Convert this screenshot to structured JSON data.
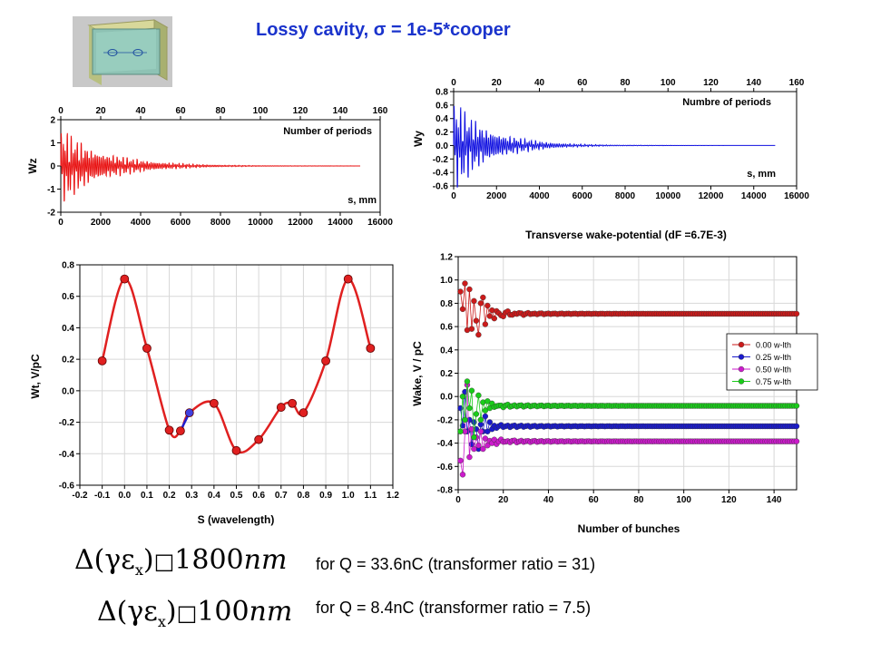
{
  "page_title": {
    "prefix": "Lossy cavity, ",
    "sigma": "σ",
    "eq": " = ",
    "rest": "1e-5*cooper"
  },
  "colors": {
    "title": "#1a33cc",
    "wz": "#e81010",
    "wy": "#1010e0",
    "wt": "#e02020",
    "s0": "#cc1a1a",
    "s1": "#1a1acc",
    "s2": "#cc1acc",
    "s3": "#1acc1a"
  },
  "chart_data": [
    {
      "id": "wz",
      "type": "line",
      "title": "",
      "xlabel": "s, mm",
      "ylabel": "Wz",
      "top_xlabel": "Number of periods",
      "xlim": [
        0,
        16000
      ],
      "ylim": [
        -2,
        2
      ],
      "xticks": [
        "0",
        "2000",
        "4000",
        "6000",
        "8000",
        "10000",
        "12000",
        "14000",
        "16000"
      ],
      "top_xlim": [
        0,
        160
      ],
      "top_ticks": [
        "0",
        "20",
        "40",
        "60",
        "80",
        "100",
        "120",
        "140",
        "160"
      ],
      "yticks": [
        "-2",
        "-1",
        "0",
        "1",
        "2"
      ],
      "series": [
        {
          "signal": "decaying-oscillation",
          "x_end": 15000,
          "initial_amplitude": 1.8,
          "decay_length": 2200,
          "period": 100
        }
      ]
    },
    {
      "id": "wy",
      "type": "line",
      "title": "",
      "xlabel": "s, mm",
      "ylabel": "Wy",
      "top_xlabel": "Numbre of periods",
      "xlim": [
        0,
        16000
      ],
      "ylim": [
        -0.6,
        0.8
      ],
      "xticks": [
        "0",
        "2000",
        "4000",
        "6000",
        "8000",
        "10000",
        "12000",
        "14000",
        "16000"
      ],
      "top_xlim": [
        0,
        160
      ],
      "top_ticks": [
        "0",
        "20",
        "40",
        "60",
        "80",
        "100",
        "120",
        "140",
        "160"
      ],
      "yticks": [
        "-0.6",
        "-0.4",
        "-0.2",
        "0.0",
        "0.2",
        "0.4",
        "0.6",
        "0.8"
      ],
      "caption": "Transverse wake-potential (dF =6.7E-3)",
      "series": [
        {
          "signal": "decaying-oscillation",
          "x_end": 15000,
          "initial_amplitude": 0.75,
          "decay_length": 1700,
          "period": 100
        }
      ]
    },
    {
      "id": "wt",
      "type": "line",
      "title": "",
      "xlabel": "S (wavelength)",
      "ylabel": "Wt, V/pC",
      "xlim": [
        -0.2,
        1.2
      ],
      "ylim": [
        -0.6,
        0.8
      ],
      "xticks": [
        "-0.2",
        "-0.1",
        "0.0",
        "0.1",
        "0.2",
        "0.3",
        "0.4",
        "0.5",
        "0.6",
        "0.7",
        "0.8",
        "0.9",
        "1.0",
        "1.1",
        "1.2"
      ],
      "yticks": [
        "-0.6",
        "-0.4",
        "-0.2",
        "0.0",
        "0.2",
        "0.4",
        "0.6",
        "0.8"
      ],
      "points": [
        {
          "x": -0.1,
          "y": 0.19
        },
        {
          "x": 0.0,
          "y": 0.71
        },
        {
          "x": 0.1,
          "y": 0.27
        },
        {
          "x": 0.2,
          "y": -0.25
        },
        {
          "x": 0.25,
          "y": -0.255
        },
        {
          "x": 0.29,
          "y": -0.14
        },
        {
          "x": 0.4,
          "y": -0.08
        },
        {
          "x": 0.5,
          "y": -0.38
        },
        {
          "x": 0.6,
          "y": -0.31
        },
        {
          "x": 0.7,
          "y": -0.105
        },
        {
          "x": 0.75,
          "y": -0.08
        },
        {
          "x": 0.8,
          "y": -0.14
        },
        {
          "x": 0.9,
          "y": 0.19
        },
        {
          "x": 1.0,
          "y": 0.71
        },
        {
          "x": 1.1,
          "y": 0.27
        }
      ],
      "blue_segment": {
        "x1": 0.25,
        "y1": -0.255,
        "x2": 0.29,
        "y2": -0.14
      }
    },
    {
      "id": "wake",
      "type": "scatter",
      "title": "",
      "xlabel": "Number of bunches",
      "ylabel": "Wake, V / pC",
      "xlim": [
        0,
        150
      ],
      "ylim": [
        -0.8,
        1.2
      ],
      "xticks": [
        "0",
        "20",
        "40",
        "60",
        "80",
        "100",
        "120",
        "140"
      ],
      "yticks": [
        "-0.8",
        "-0.6",
        "-0.4",
        "-0.2",
        "0.0",
        "0.2",
        "0.4",
        "0.6",
        "0.8",
        "1.0",
        "1.2"
      ],
      "legend_position": "right",
      "series": [
        {
          "name": "0.00 w-lth",
          "color": "#cc1a1a",
          "steady": 0.71,
          "initial": [
            0.9,
            0.75,
            0.97,
            0.57,
            0.92,
            0.58,
            0.82,
            0.65,
            0.53,
            0.8,
            0.85,
            0.62,
            0.78,
            0.69,
            0.74,
            0.67
          ]
        },
        {
          "name": "0.25 w-lth",
          "color": "#1a1acc",
          "steady": -0.255,
          "initial": [
            -0.1,
            -0.25,
            0.04,
            -0.3,
            -0.2,
            -0.41,
            -0.22,
            -0.28,
            -0.45,
            -0.24,
            -0.3,
            -0.17,
            -0.3,
            -0.22,
            -0.28,
            -0.25
          ]
        },
        {
          "name": "0.50 w-lth",
          "color": "#cc1acc",
          "steady": -0.385,
          "initial": [
            -0.55,
            -0.67,
            -0.3,
            0.1,
            -0.52,
            -0.28,
            -0.45,
            -0.35,
            -0.42,
            -0.3,
            -0.45,
            -0.36,
            -0.42,
            -0.38,
            -0.4,
            -0.37
          ]
        },
        {
          "name": "0.75 w-lth",
          "color": "#1acc1a",
          "steady": -0.08,
          "initial": [
            -0.3,
            0.0,
            -0.2,
            0.13,
            -0.1,
            0.05,
            -0.35,
            -0.15,
            0.01,
            -0.2,
            -0.05,
            -0.12,
            -0.04,
            -0.1,
            -0.06,
            -0.09
          ]
        }
      ]
    }
  ],
  "equations": [
    {
      "lhs": "Δ(γε",
      "sub": "x",
      "rhs": ")",
      "box": "□",
      "value": "1800",
      "unit": "nm",
      "note": "for Q = 33.6nC (transformer ratio = 31)"
    },
    {
      "lhs": "Δ(γε",
      "sub": "x",
      "rhs": ")",
      "box": "□",
      "value": "100",
      "unit": "nm",
      "note": "for Q = 8.4nC (transformer ratio = 7.5)"
    }
  ]
}
